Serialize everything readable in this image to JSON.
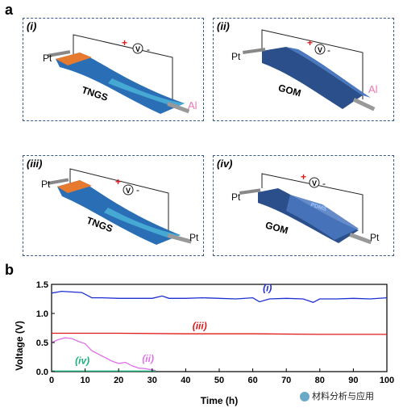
{
  "panel_a": {
    "letter": "a",
    "panels": [
      {
        "label": "(i)",
        "material": "TNGS",
        "left_electrode": "Pt",
        "right_electrode": "Al",
        "plus": "+",
        "meter": "V",
        "minus": "-",
        "pdms": ""
      },
      {
        "label": "(ii)",
        "material": "GOM",
        "left_electrode": "Pt",
        "right_electrode": "Al",
        "plus": "+",
        "meter": "V",
        "minus": "-",
        "pdms": ""
      },
      {
        "label": "(iii)",
        "material": "TNGS",
        "left_electrode": "Pt",
        "right_electrode": "Pt",
        "plus": "+",
        "meter": "V",
        "minus": "-",
        "pdms": ""
      },
      {
        "label": "(iv)",
        "material": "GOM",
        "left_electrode": "Pt",
        "right_electrode": "Pt",
        "plus": "+",
        "meter": "V",
        "minus": "-",
        "pdms": "PDMS"
      }
    ]
  },
  "panel_b": {
    "letter": "b"
  },
  "chart_data": {
    "type": "line",
    "xlabel": "Time (h)",
    "ylabel": "Voltage (V)",
    "xlim": [
      0,
      100
    ],
    "ylim": [
      0,
      1.5
    ],
    "xticks": [
      "0",
      "10",
      "20",
      "30",
      "40",
      "50",
      "60",
      "70",
      "80",
      "90",
      "100"
    ],
    "yticks": [
      "0.0",
      "0.5",
      "1.0",
      "1.5"
    ],
    "series": [
      {
        "name": "(i)",
        "color": "#1f2fd0",
        "x": [
          0,
          3,
          6,
          9,
          10,
          11,
          12,
          15,
          20,
          25,
          30,
          33,
          35,
          40,
          45,
          50,
          55,
          60,
          62,
          65,
          70,
          75,
          78,
          80,
          85,
          90,
          95,
          100
        ],
        "y": [
          1.35,
          1.38,
          1.37,
          1.36,
          1.33,
          1.3,
          1.27,
          1.27,
          1.26,
          1.26,
          1.26,
          1.3,
          1.26,
          1.26,
          1.27,
          1.26,
          1.25,
          1.27,
          1.2,
          1.25,
          1.26,
          1.25,
          1.19,
          1.25,
          1.25,
          1.26,
          1.25,
          1.27
        ]
      },
      {
        "name": "(iii)",
        "color": "#e01818",
        "x": [
          0,
          20,
          40,
          60,
          80,
          100
        ],
        "y": [
          0.66,
          0.66,
          0.65,
          0.65,
          0.64,
          0.64
        ]
      },
      {
        "name": "(ii)",
        "color": "#e070e8",
        "x": [
          0,
          2,
          4,
          6,
          8,
          10,
          12,
          14,
          16,
          18,
          20,
          22,
          24,
          26,
          28,
          30,
          31
        ],
        "y": [
          0.5,
          0.55,
          0.58,
          0.57,
          0.52,
          0.48,
          0.36,
          0.3,
          0.24,
          0.18,
          0.14,
          0.16,
          0.1,
          0.06,
          0.05,
          0.03,
          0.02
        ]
      },
      {
        "name": "(iv)",
        "color": "#1ab07a",
        "x": [
          0,
          5,
          10,
          15,
          20,
          25,
          30,
          31
        ],
        "y": [
          0.01,
          0.01,
          0.01,
          0.01,
          0.01,
          0.01,
          0.01,
          0.01
        ]
      }
    ]
  },
  "watermark": {
    "text": "材料分析与应用"
  }
}
